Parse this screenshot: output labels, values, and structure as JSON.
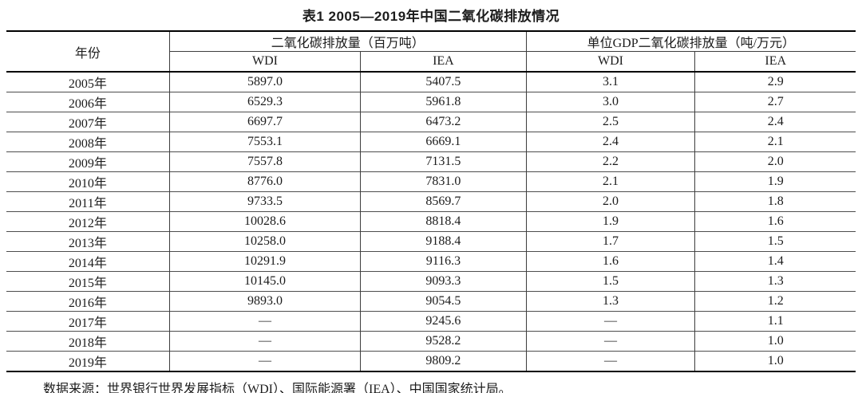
{
  "title": "表1 2005—2019年中国二氧化碳排放情况",
  "table": {
    "year_header": "年份",
    "group1_header": "二氧化碳排放量（百万吨）",
    "group2_header": "单位GDP二氧化碳排放量（吨/万元）",
    "sub_headers": [
      "WDI",
      "IEA",
      "WDI",
      "IEA"
    ],
    "rows": [
      [
        "2005年",
        "5897.0",
        "5407.5",
        "3.1",
        "2.9"
      ],
      [
        "2006年",
        "6529.3",
        "5961.8",
        "3.0",
        "2.7"
      ],
      [
        "2007年",
        "6697.7",
        "6473.2",
        "2.5",
        "2.4"
      ],
      [
        "2008年",
        "7553.1",
        "6669.1",
        "2.4",
        "2.1"
      ],
      [
        "2009年",
        "7557.8",
        "7131.5",
        "2.2",
        "2.0"
      ],
      [
        "2010年",
        "8776.0",
        "7831.0",
        "2.1",
        "1.9"
      ],
      [
        "2011年",
        "9733.5",
        "8569.7",
        "2.0",
        "1.8"
      ],
      [
        "2012年",
        "10028.6",
        "8818.4",
        "1.9",
        "1.6"
      ],
      [
        "2013年",
        "10258.0",
        "9188.4",
        "1.7",
        "1.5"
      ],
      [
        "2014年",
        "10291.9",
        "9116.3",
        "1.6",
        "1.4"
      ],
      [
        "2015年",
        "10145.0",
        "9093.3",
        "1.5",
        "1.3"
      ],
      [
        "2016年",
        "9893.0",
        "9054.5",
        "1.3",
        "1.2"
      ],
      [
        "2017年",
        "—",
        "9245.6",
        "—",
        "1.1"
      ],
      [
        "2018年",
        "—",
        "9528.2",
        "—",
        "1.0"
      ],
      [
        "2019年",
        "—",
        "9809.2",
        "—",
        "1.0"
      ]
    ]
  },
  "footnote": "数据来源：世界银行世界发展指标（WDI）、国际能源署（IEA）、中国国家统计局。",
  "colors": {
    "text": "#1c1c1c",
    "border_thick": "#000000",
    "border_thin": "#3d3d3d",
    "background": "#ffffff"
  }
}
